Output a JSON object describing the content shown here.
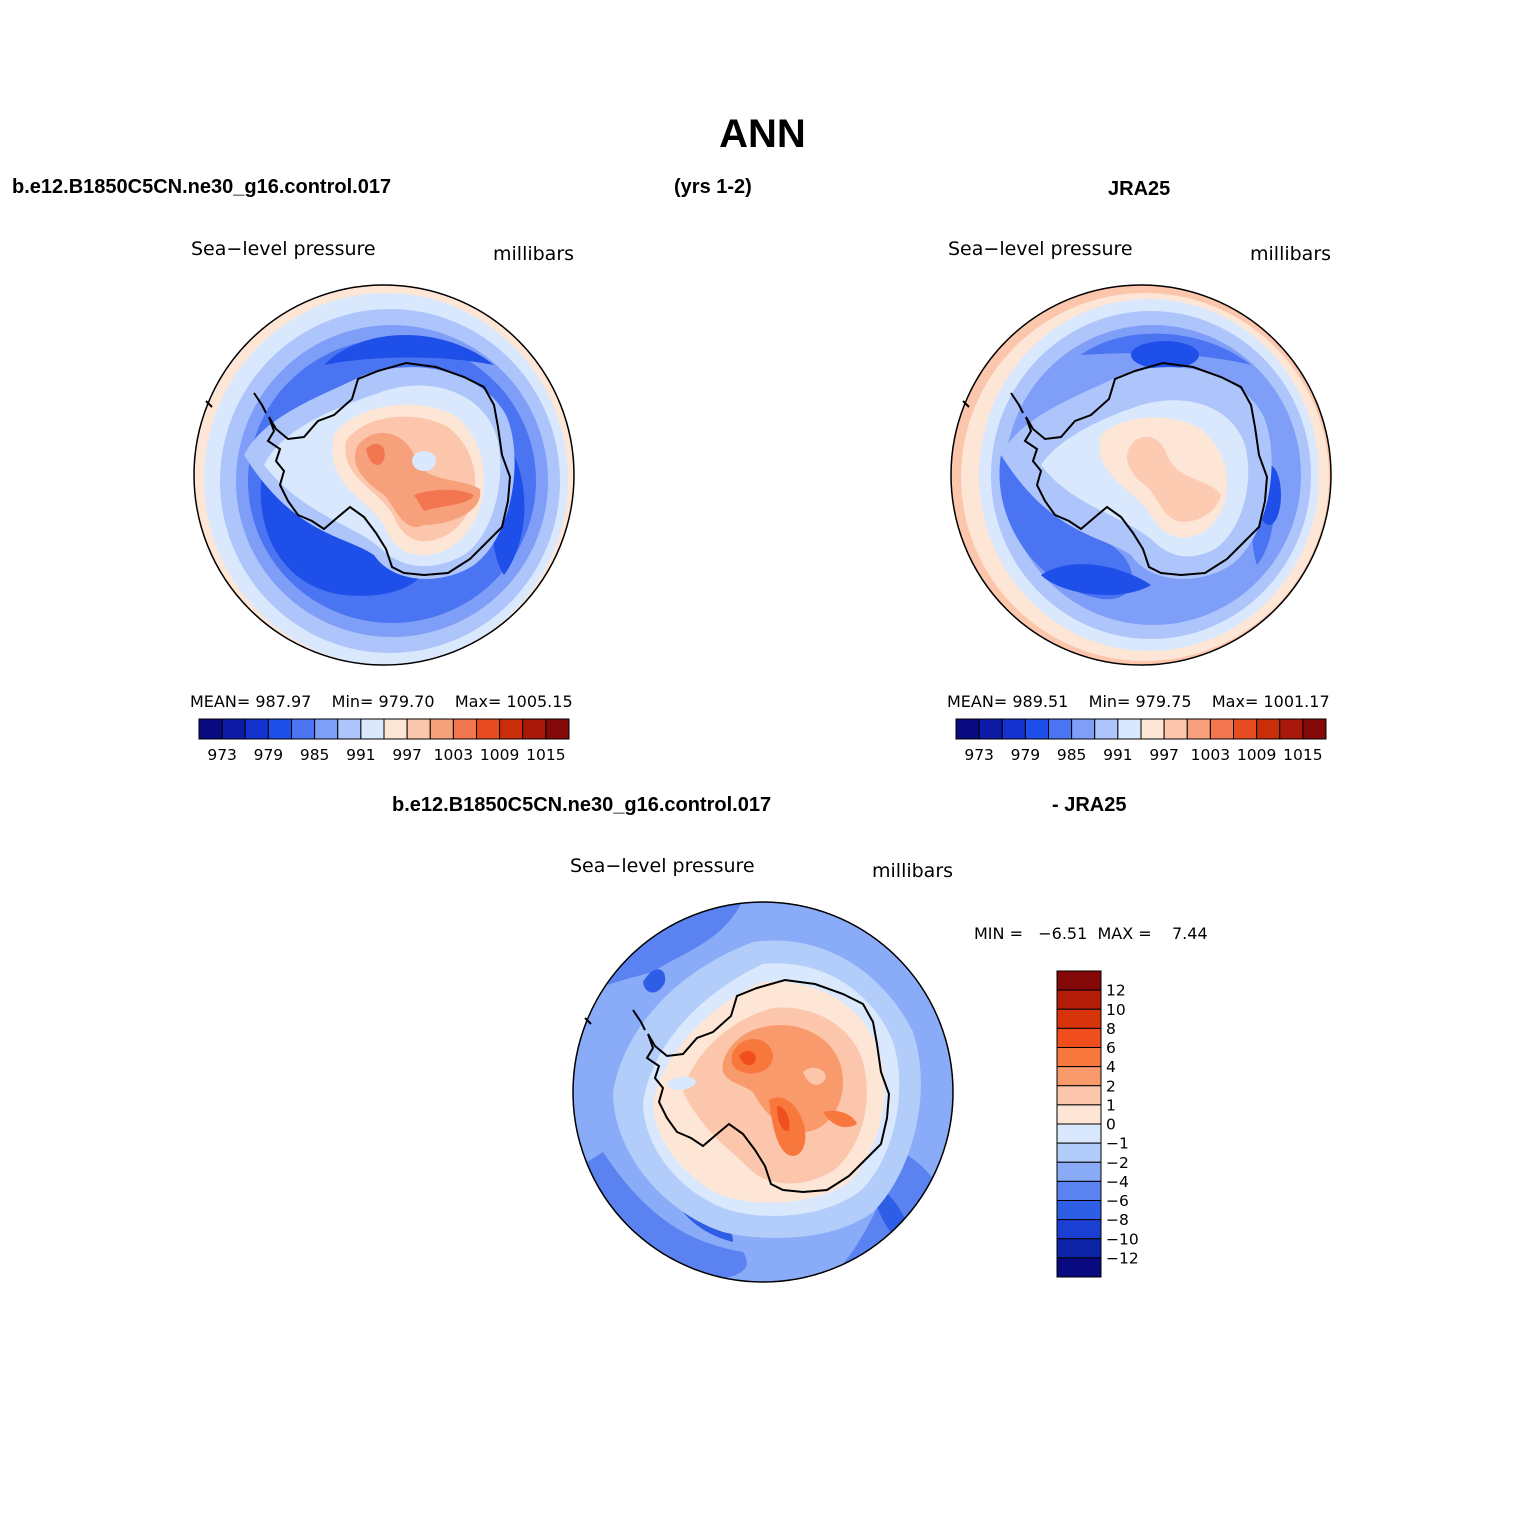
{
  "title": "ANN",
  "header": {
    "model_case": "b.e12.B1850C5CN.ne30_g16.control.017",
    "years": "(yrs 1-2)",
    "obs": "JRA25"
  },
  "panels": {
    "model": {
      "variable": "Sea−level pressure",
      "units": "millibars",
      "stats": {
        "mean_label": "MEAN=",
        "mean": "987.97",
        "min_label": "Min=",
        "min": "979.70",
        "max_label": "Max=",
        "max": "1005.15"
      }
    },
    "obs": {
      "variable": "Sea−level pressure",
      "units": "millibars",
      "stats": {
        "mean_label": "MEAN=",
        "mean": "989.51",
        "min_label": "Min=",
        "min": "979.75",
        "max_label": "Max=",
        "max": "1001.17"
      }
    },
    "diff": {
      "case_label": "b.e12.B1850C5CN.ne30_g16.control.017",
      "obs_label": "- JRA25",
      "variable": "Sea−level pressure",
      "units": "millibars",
      "stats": {
        "min_label": "MIN =",
        "min": "−6.51",
        "max_label": "MAX =",
        "max": "7.44"
      }
    }
  },
  "colorbars": {
    "slp": {
      "ticks": [
        "973",
        "979",
        "985",
        "991",
        "997",
        "1003",
        "1009",
        "1015"
      ],
      "colors": [
        "#0a0a80",
        "#0d1aa6",
        "#1432cf",
        "#1e4fe8",
        "#4a74f2",
        "#7e9ef7",
        "#adc5fb",
        "#d9e8fd",
        "#fde6d6",
        "#fbc6ac",
        "#f7a07c",
        "#f27650",
        "#e64c20",
        "#c92d0a",
        "#a8190b",
        "#850808"
      ]
    },
    "diff": {
      "ticks": [
        "12",
        "10",
        "8",
        "6",
        "4",
        "2",
        "1",
        "0",
        "−1",
        "−2",
        "−4",
        "−6",
        "−8",
        "−10",
        "−12"
      ],
      "colors": [
        "#850808",
        "#b31d08",
        "#d8340c",
        "#f04e1c",
        "#f7773c",
        "#f99a6c",
        "#fcc6ac",
        "#fde6d6",
        "#d9e8fd",
        "#b3cdfb",
        "#8aabf7",
        "#5a83f1",
        "#2e5ee6",
        "#1b3fd2",
        "#0d24a8",
        "#0a0a80"
      ]
    }
  }
}
